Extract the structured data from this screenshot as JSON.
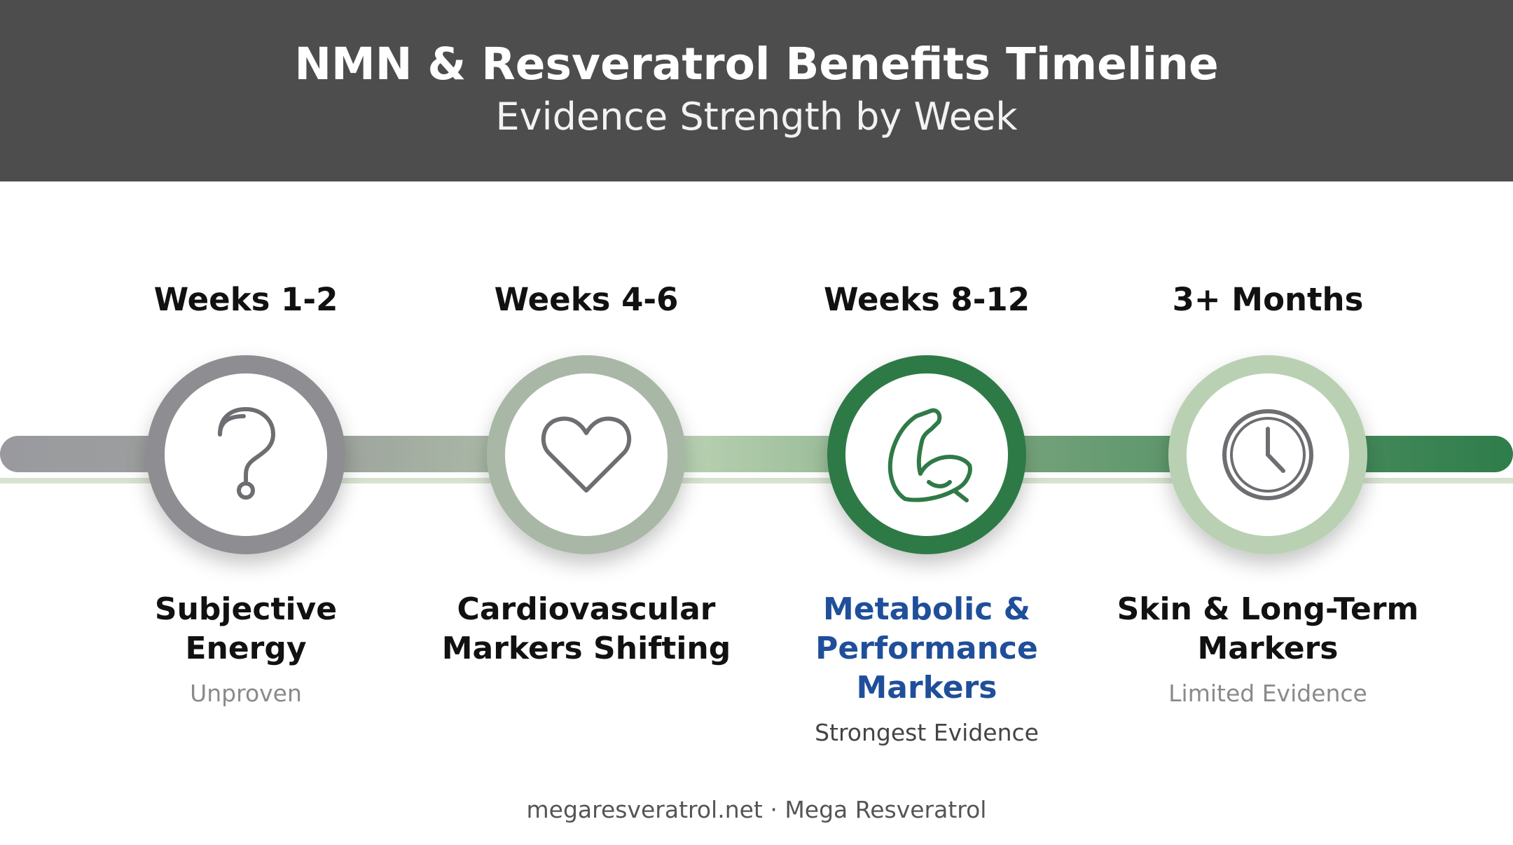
{
  "header": {
    "title": "NMN & Resveratrol Benefits Timeline",
    "subtitle": "Evidence Strength by Week"
  },
  "stages": [
    {
      "week": "Weeks 1-2",
      "title_lines": [
        "Subjective",
        "Energy"
      ],
      "evidence": "Unproven",
      "icon": "question-mark-icon",
      "ring_color": "#8e8e92"
    },
    {
      "week": "Weeks 4-6",
      "title_lines": [
        "Cardiovascular",
        "Markers Shifting"
      ],
      "evidence": "",
      "icon": "heart-icon",
      "ring_color": "#a9b8a6"
    },
    {
      "week": "Weeks 8-12",
      "title_lines": [
        "Metabolic &",
        "Performance",
        "Markers"
      ],
      "evidence": "Strongest Evidence",
      "icon": "flexed-arm-icon",
      "ring_color": "#2f7a47"
    },
    {
      "week": "3+ Months",
      "title_lines": [
        "Skin & Long-Term",
        "Markers"
      ],
      "evidence": "Limited Evidence",
      "icon": "clock-icon",
      "ring_color": "#b9d1b2"
    }
  ],
  "colors": {
    "header_bg": "#4d4d4d",
    "highlight_text": "#1f4f9a",
    "bar_start": "#9a9a9e",
    "bar_mid": "#b7cfb2",
    "bar_end": "#2e7d4a"
  },
  "footer": "megaresveratrol.net · Mega Resveratrol"
}
